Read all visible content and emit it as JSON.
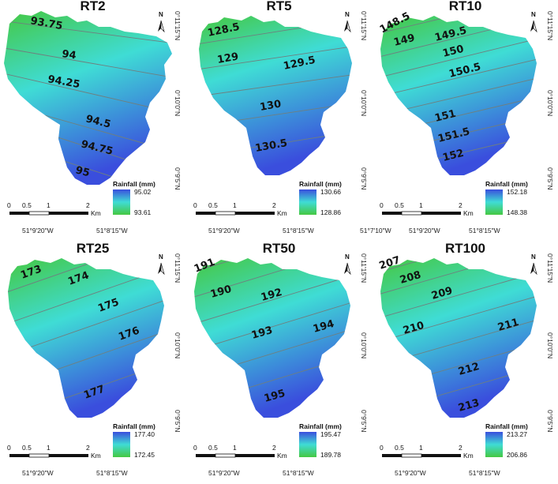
{
  "legend_title": "Rainfall (mm)",
  "scale_bar": {
    "ticks": [
      "0",
      "0.5",
      "1",
      "2"
    ],
    "unit": "Km"
  },
  "north_label": "N",
  "lat_labels": [
    "0°11'15\"N",
    "0°10'0\"N",
    "0°9'5\"N"
  ],
  "colors": {
    "low": "#3ccb4f",
    "mid": "#3fe0e3",
    "high": "#3a52dd",
    "contour": "#6f7f7f"
  },
  "panels": [
    {
      "title": "RT2",
      "legend_max": "95.02",
      "legend_min": "93.61",
      "lon_labels": [
        "51°9'20\"W",
        "51°8'15\"W"
      ],
      "contours": [
        "93.75",
        "94",
        "94.25",
        "94.5",
        "94.75",
        "95"
      ]
    },
    {
      "title": "RT5",
      "legend_max": "130.66",
      "legend_min": "128.86",
      "lon_labels": [
        "51°9'20\"W",
        "51°8'15\"W"
      ],
      "contours": [
        "128.5",
        "129",
        "129.5",
        "130",
        "130.5"
      ]
    },
    {
      "title": "RT10",
      "legend_max": "152.18",
      "legend_min": "148.38",
      "lon_labels": [
        "51°7'10\"W",
        "51°9'20\"W",
        "51°8'15\"W"
      ],
      "contours": [
        "148.5",
        "149",
        "149.5",
        "150",
        "150.5",
        "151",
        "151.5",
        "152"
      ]
    },
    {
      "title": "RT25",
      "legend_max": "177.40",
      "legend_min": "172.45",
      "lon_labels": [
        "51°9'20\"W",
        "51°8'15\"W"
      ],
      "contours": [
        "173",
        "174",
        "175",
        "176",
        "177"
      ]
    },
    {
      "title": "RT50",
      "legend_max": "195.47",
      "legend_min": "189.78",
      "lon_labels": [
        "51°9'20\"W",
        "51°8'15\"W"
      ],
      "contours": [
        "191",
        "190",
        "192",
        "193",
        "194",
        "195"
      ]
    },
    {
      "title": "RT100",
      "legend_max": "213.27",
      "legend_min": "206.86",
      "lon_labels": [
        "51°9'20\"W",
        "51°8'15\"W"
      ],
      "contours": [
        "207",
        "208",
        "209",
        "210",
        "211",
        "212",
        "213"
      ]
    }
  ]
}
